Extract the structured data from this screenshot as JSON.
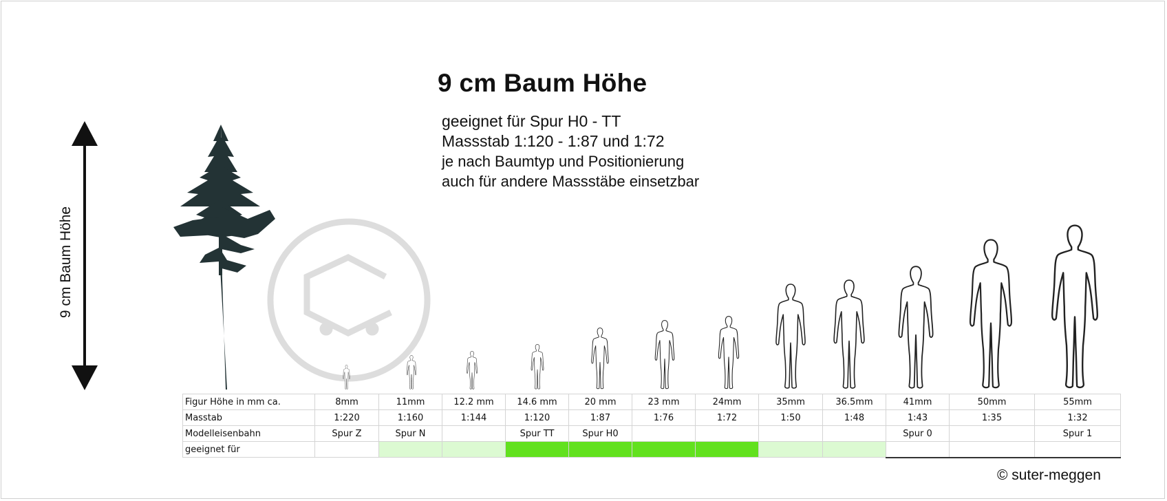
{
  "title": "9 cm Baum Höhe",
  "subtitle_lines": [
    "geeignet für Spur H0 - TT",
    "Massstab 1:120 - 1:87 und 1:72",
    "je nach Baumtyp und Positionierung",
    "auch für andere Massstäbe einsetzbar"
  ],
  "height_label": "9 cm Baum Höhe",
  "icons": {
    "tree": "pine-tree-icon",
    "arrow": "double-arrow-icon",
    "watermark": "logo-watermark",
    "figures": "human-figure-icon"
  },
  "colors": {
    "light_green": "#dcfad2",
    "bright_green": "#62e11e",
    "watermark": "#dddddd"
  },
  "table": {
    "row_labels": [
      "Figur Höhe in mm ca.",
      "Masstab",
      "Modelleisenbahn",
      "geeignet für"
    ],
    "columns": [
      {
        "height": "8mm",
        "scale": "1:220",
        "track": "Spur Z",
        "fit": "none"
      },
      {
        "height": "11mm",
        "scale": "1:160",
        "track": "Spur N",
        "fit": "partial"
      },
      {
        "height": "12.2 mm",
        "scale": "1:144",
        "track": "",
        "fit": "partial"
      },
      {
        "height": "14.6 mm",
        "scale": "1:120",
        "track": "Spur TT",
        "fit": "good"
      },
      {
        "height": "20 mm",
        "scale": "1:87",
        "track": "Spur H0",
        "fit": "good"
      },
      {
        "height": "23 mm",
        "scale": "1:76",
        "track": "",
        "fit": "good"
      },
      {
        "height": "24mm",
        "scale": "1:72",
        "track": "",
        "fit": "good"
      },
      {
        "height": "35mm",
        "scale": "1:50",
        "track": "",
        "fit": "partial"
      },
      {
        "height": "36.5mm",
        "scale": "1:48",
        "track": "",
        "fit": "partial"
      },
      {
        "height": "41mm",
        "scale": "1:43",
        "track": "Spur 0",
        "fit": "none"
      },
      {
        "height": "50mm",
        "scale": "1:35",
        "track": "",
        "fit": "none"
      },
      {
        "height": "55mm",
        "scale": "1:32",
        "track": "Spur 1",
        "fit": "none"
      }
    ]
  },
  "copyright": "© suter-meggen"
}
